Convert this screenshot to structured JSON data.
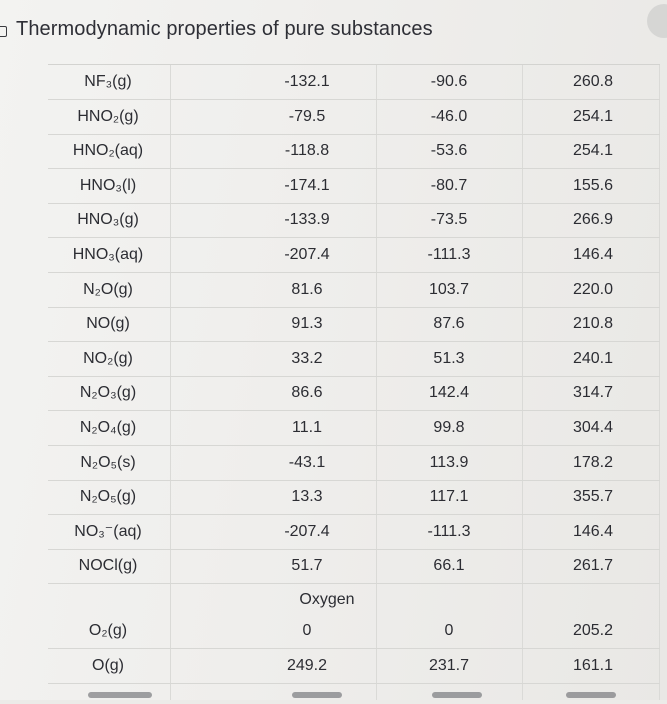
{
  "title": "Thermodynamic properties of pure substances",
  "rows": [
    {
      "formula": "NF₃(g)",
      "h": "-132.1",
      "g": "-90.6",
      "s": "260.8"
    },
    {
      "formula": "HNO₂(g)",
      "h": "-79.5",
      "g": "-46.0",
      "s": "254.1"
    },
    {
      "formula": "HNO₂(aq)",
      "h": "-118.8",
      "g": "-53.6",
      "s": "254.1"
    },
    {
      "formula": "HNO₃(l)",
      "h": "-174.1",
      "g": "-80.7",
      "s": "155.6"
    },
    {
      "formula": "HNO₃(g)",
      "h": "-133.9",
      "g": "-73.5",
      "s": "266.9"
    },
    {
      "formula": "HNO₃(aq)",
      "h": "-207.4",
      "g": "-111.3",
      "s": "146.4"
    },
    {
      "formula": "N₂O(g)",
      "h": "81.6",
      "g": "103.7",
      "s": "220.0"
    },
    {
      "formula": "NO(g)",
      "h": "91.3",
      "g": "87.6",
      "s": "210.8"
    },
    {
      "formula": "NO₂(g)",
      "h": "33.2",
      "g": "51.3",
      "s": "240.1"
    },
    {
      "formula": "N₂O₃(g)",
      "h": "86.6",
      "g": "142.4",
      "s": "314.7"
    },
    {
      "formula": "N₂O₄(g)",
      "h": "11.1",
      "g": "99.8",
      "s": "304.4"
    },
    {
      "formula": "N₂O₅(s)",
      "h": "-43.1",
      "g": "113.9",
      "s": "178.2"
    },
    {
      "formula": "N₂O₅(g)",
      "h": "13.3",
      "g": "117.1",
      "s": "355.7"
    },
    {
      "formula": "NO₃⁻(aq)",
      "h": "-207.4",
      "g": "-111.3",
      "s": "146.4"
    },
    {
      "formula": "NOCl(g)",
      "h": "51.7",
      "g": "66.1",
      "s": "261.7"
    }
  ],
  "section_oxygen": {
    "label": "Oxygen",
    "rows": [
      {
        "formula": "O₂(g)",
        "h": "0",
        "g": "0",
        "s": "205.2"
      },
      {
        "formula": "O(g)",
        "h": "249.2",
        "g": "231.7",
        "s": "161.1"
      }
    ]
  }
}
